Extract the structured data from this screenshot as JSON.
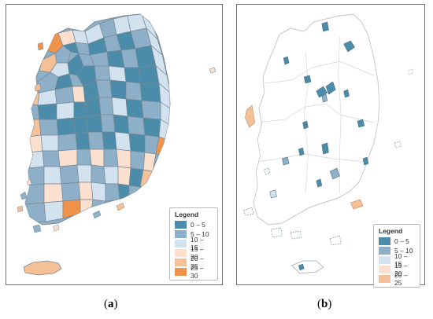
{
  "colors": {
    "frame": "#6f6f6f",
    "boundary": "#8c99a6",
    "empty_region": "#ffffff",
    "empty_boundary": "#c8c8c8",
    "class_0_5": "#4a8ca9",
    "class_5_10": "#8db0c8",
    "class_10_15": "#d2e3ef",
    "class_15_20": "#fbe0cf",
    "class_20_25": "#f4c097",
    "class_25_30": "#f0924a"
  },
  "panel_a": {
    "legend_title": "Legend",
    "legend_items": [
      {
        "label": "0 – 5",
        "color": "#4a8ca9"
      },
      {
        "label": "5 – 10",
        "color": "#8db0c8"
      },
      {
        "label": "10 – 15",
        "color": "#d2e3ef"
      },
      {
        "label": "15 – 20",
        "color": "#fbe0cf"
      },
      {
        "label": "20 – 25",
        "color": "#f4c097"
      },
      {
        "label": "25 – 30",
        "color": "#f0924a"
      }
    ],
    "caption_open": "(",
    "caption_letter": "a",
    "caption_close": ")"
  },
  "panel_b": {
    "legend_title": "Legend",
    "legend_items": [
      {
        "label": "0 – 5",
        "color": "#4a8ca9"
      },
      {
        "label": "5 – 10",
        "color": "#8db0c8"
      },
      {
        "label": "10 – 15",
        "color": "#d2e3ef"
      },
      {
        "label": "15 – 20",
        "color": "#fbe0cf"
      },
      {
        "label": "20 – 25",
        "color": "#f4c097"
      }
    ],
    "caption_open": "(",
    "caption_letter": "b",
    "caption_close": ")"
  }
}
